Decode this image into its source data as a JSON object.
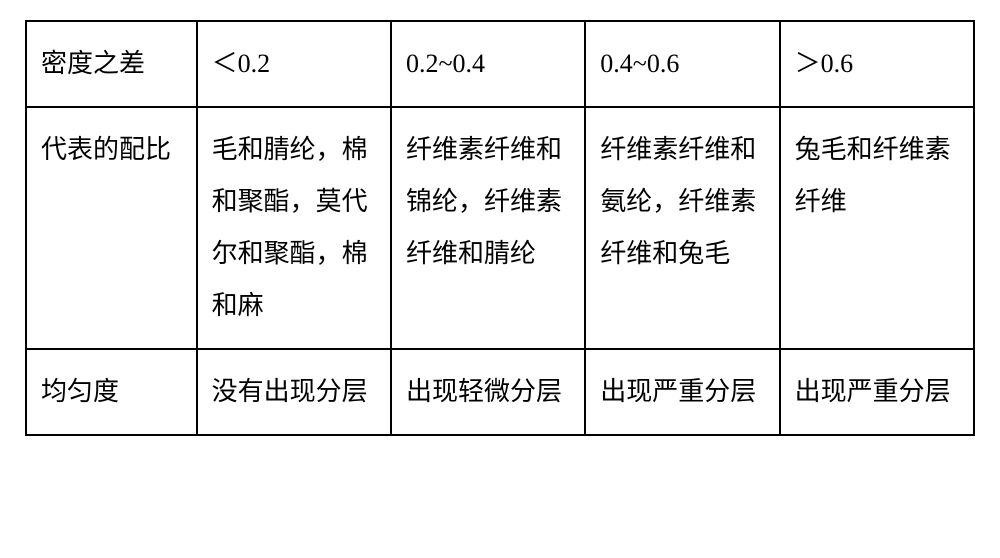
{
  "table": {
    "type": "table",
    "columns": [
      {
        "key": "rowhead",
        "width_pct": 18
      },
      {
        "key": "c1",
        "width_pct": 20.5
      },
      {
        "key": "c2",
        "width_pct": 20.5
      },
      {
        "key": "c3",
        "width_pct": 20.5
      },
      {
        "key": "c4",
        "width_pct": 20.5
      }
    ],
    "border_color": "#000000",
    "background_color": "#ffffff",
    "text_color": "#000000",
    "font_size_pt": 20,
    "line_height": 2.0,
    "rows": [
      {
        "head": "密度之差",
        "c1": "＜0.2",
        "c2": "0.2~0.4",
        "c3": "0.4~0.6",
        "c4": "＞0.6"
      },
      {
        "head": "代表的配比",
        "c1": "毛和腈纶，棉和聚酯，莫代尔和聚酯，棉和麻",
        "c2": "纤维素纤维和锦纶，纤维素纤维和腈纶",
        "c3": "纤维素纤维和氨纶，纤维素纤维和兔毛",
        "c4": "兔毛和纤维素纤维"
      },
      {
        "head": "均匀度",
        "c1": "没有出现分层",
        "c2": "出现轻微分层",
        "c3": "出现严重分层",
        "c4": "出现严重分层"
      }
    ]
  }
}
